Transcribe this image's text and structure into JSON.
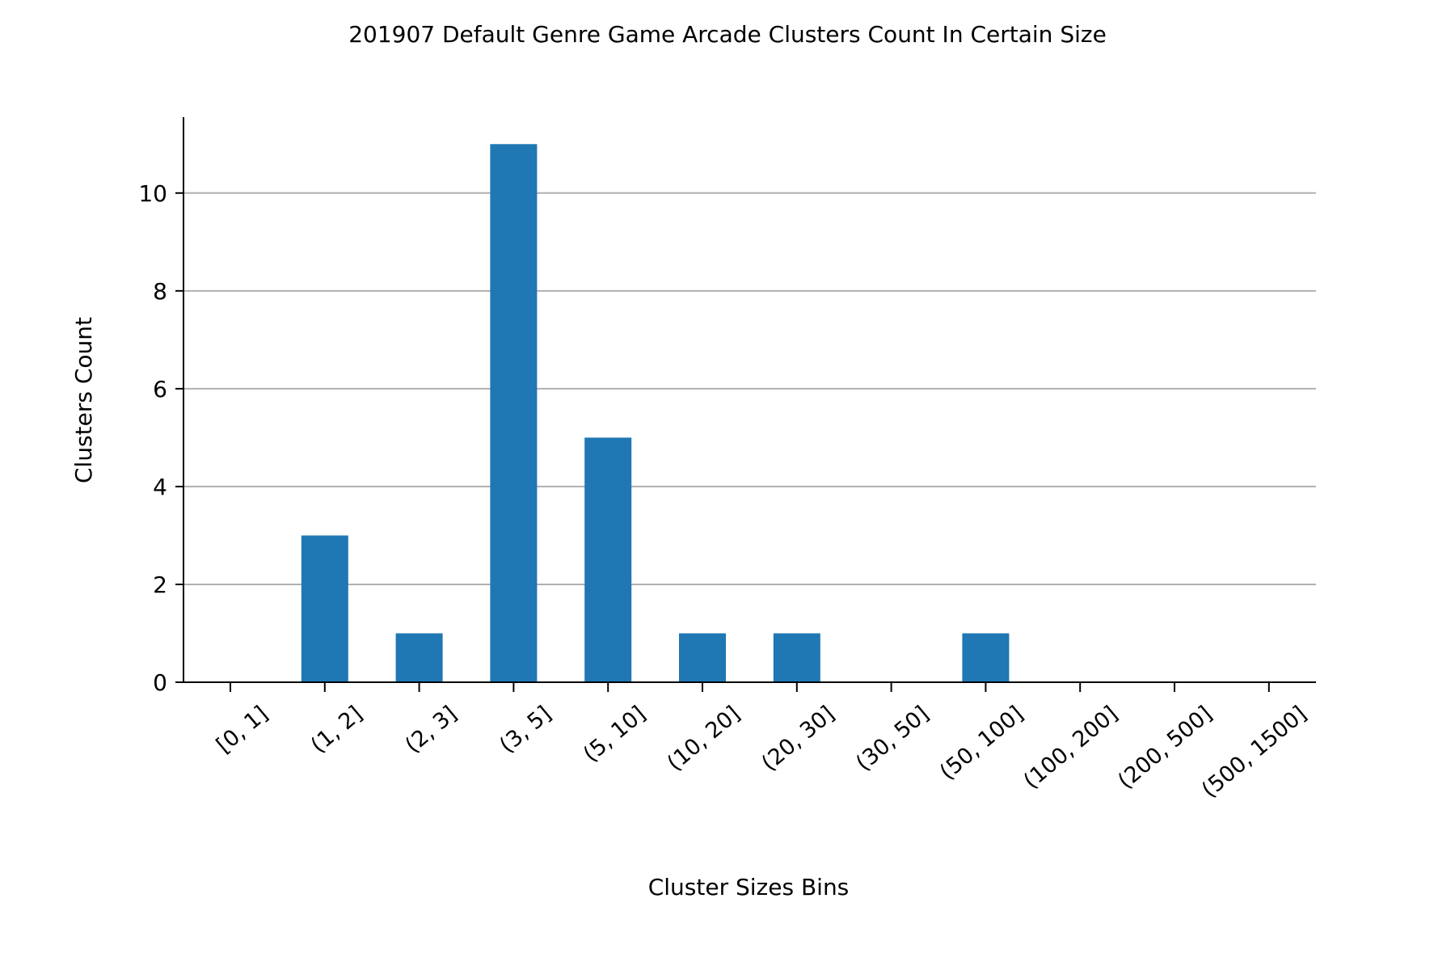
{
  "chart_data": {
    "type": "bar",
    "title": "201907 Default Genre Game Arcade Clusters Count In Certain Size",
    "xlabel": "Cluster Sizes Bins",
    "ylabel": "Clusters Count",
    "categories": [
      "[0, 1]",
      "(1, 2]",
      "(2, 3]",
      "(3, 5]",
      "(5, 10]",
      "(10, 20]",
      "(20, 30]",
      "(30, 50]",
      "(50, 100]",
      "(100, 200]",
      "(200, 500]",
      "(500, 1500]"
    ],
    "values": [
      0,
      3,
      1,
      11,
      5,
      1,
      1,
      0,
      1,
      0,
      0,
      0
    ],
    "ylim": [
      0,
      11.55
    ],
    "yticks": [
      0,
      2,
      4,
      6,
      8,
      10
    ],
    "grid": "horizontal",
    "legend": "none",
    "colors": {
      "bar": "#1f77b4",
      "grid": "#b0b0b0",
      "axis": "#000000"
    }
  }
}
